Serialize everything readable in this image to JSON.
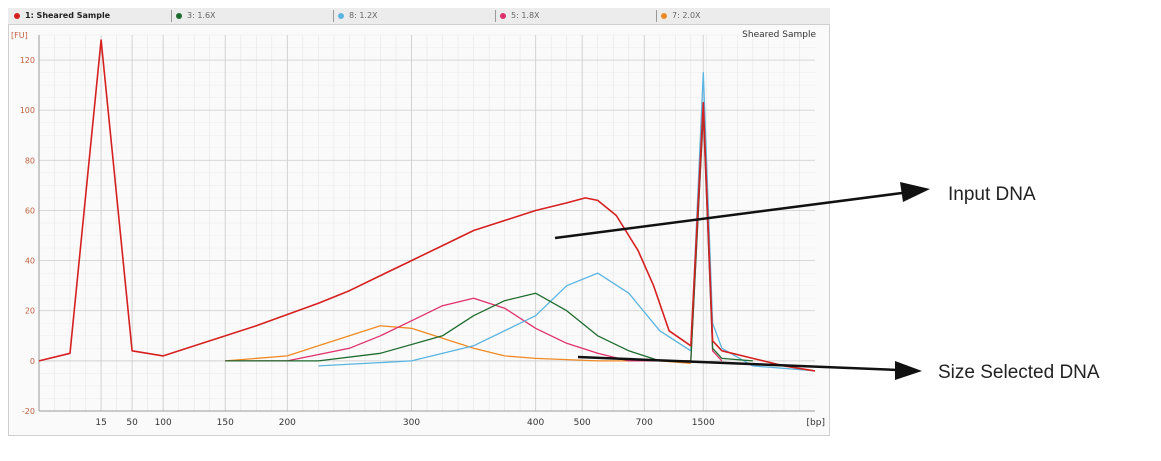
{
  "tabs": [
    {
      "label": "1: Sheared Sample",
      "color": "#d62020",
      "active": true
    },
    {
      "label": "3: 1.6X",
      "color": "#1e6b2e",
      "active": false
    },
    {
      "label": "8: 1.2X",
      "color": "#5ab4e0",
      "active": false
    },
    {
      "label": "5: 1.8X",
      "color": "#e0306a",
      "active": false
    },
    {
      "label": "7: 2.0X",
      "color": "#f08a24",
      "active": false
    }
  ],
  "annotations": {
    "input": "Input DNA",
    "size_selected": "Size Selected DNA"
  },
  "chart_data": {
    "type": "line",
    "title": "Sheared Sample",
    "ylabel": "[FU]",
    "xlabel": "[bp]",
    "ylim": [
      -20,
      130
    ],
    "yticks": [
      -20,
      0,
      20,
      40,
      60,
      80,
      100,
      120
    ],
    "xticks": [
      "15",
      "50",
      "100",
      "150",
      "200",
      "300",
      "400",
      "500",
      "700",
      "1500"
    ],
    "grid": true,
    "series": [
      {
        "name": "1: Sheared Sample",
        "color": "#d62020",
        "points": [
          [
            0,
            0
          ],
          [
            1,
            3
          ],
          [
            2,
            128
          ],
          [
            3,
            4
          ],
          [
            4,
            2
          ],
          [
            7,
            14
          ],
          [
            9,
            23
          ],
          [
            10,
            28
          ],
          [
            11,
            34
          ],
          [
            12,
            40
          ],
          [
            13,
            46
          ],
          [
            14,
            52
          ],
          [
            15,
            56
          ],
          [
            16,
            60
          ],
          [
            17,
            63
          ],
          [
            17.6,
            65
          ],
          [
            18,
            64
          ],
          [
            18.6,
            58
          ],
          [
            19.3,
            44
          ],
          [
            19.8,
            30
          ],
          [
            20.3,
            12
          ],
          [
            21,
            6
          ],
          [
            21.4,
            103
          ],
          [
            21.7,
            8
          ],
          [
            22,
            4
          ],
          [
            23,
            1
          ],
          [
            24,
            -2
          ],
          [
            25,
            -4
          ]
        ]
      },
      {
        "name": "3: 1.6X",
        "color": "#1e6b2e",
        "points": [
          [
            6,
            0
          ],
          [
            9,
            0
          ],
          [
            11,
            3
          ],
          [
            13,
            10
          ],
          [
            14,
            18
          ],
          [
            15,
            24
          ],
          [
            16,
            27
          ],
          [
            17,
            20
          ],
          [
            18,
            10
          ],
          [
            19,
            4
          ],
          [
            20,
            0
          ],
          [
            21,
            0
          ],
          [
            21.4,
            100
          ],
          [
            21.7,
            5
          ],
          [
            22,
            1
          ],
          [
            23,
            0
          ]
        ]
      },
      {
        "name": "8: 1.2X",
        "color": "#5ab4e0",
        "points": [
          [
            9,
            -2
          ],
          [
            12,
            0
          ],
          [
            14,
            6
          ],
          [
            16,
            18
          ],
          [
            17,
            30
          ],
          [
            18,
            35
          ],
          [
            19,
            27
          ],
          [
            20,
            12
          ],
          [
            21,
            4
          ],
          [
            21.4,
            115
          ],
          [
            21.7,
            15
          ],
          [
            22,
            5
          ],
          [
            23,
            -2
          ],
          [
            24,
            -3
          ],
          [
            25,
            -4
          ]
        ]
      },
      {
        "name": "5: 1.8X",
        "color": "#e0306a",
        "points": [
          [
            6,
            0
          ],
          [
            8,
            0
          ],
          [
            10,
            5
          ],
          [
            11,
            10
          ],
          [
            12,
            16
          ],
          [
            13,
            22
          ],
          [
            14,
            25
          ],
          [
            15,
            21
          ],
          [
            16,
            13
          ],
          [
            17,
            7
          ],
          [
            18,
            3
          ],
          [
            19,
            0
          ],
          [
            21,
            0
          ],
          [
            21.4,
            98
          ],
          [
            21.7,
            4
          ],
          [
            22,
            0
          ]
        ]
      },
      {
        "name": "7: 2.0X",
        "color": "#f08a24",
        "points": [
          [
            6,
            0
          ],
          [
            8,
            2
          ],
          [
            9,
            6
          ],
          [
            10,
            10
          ],
          [
            11,
            14
          ],
          [
            12,
            13
          ],
          [
            13,
            9
          ],
          [
            14,
            5
          ],
          [
            15,
            2
          ],
          [
            16,
            1
          ],
          [
            18,
            0
          ],
          [
            20,
            0
          ],
          [
            21,
            -1
          ]
        ]
      }
    ]
  }
}
